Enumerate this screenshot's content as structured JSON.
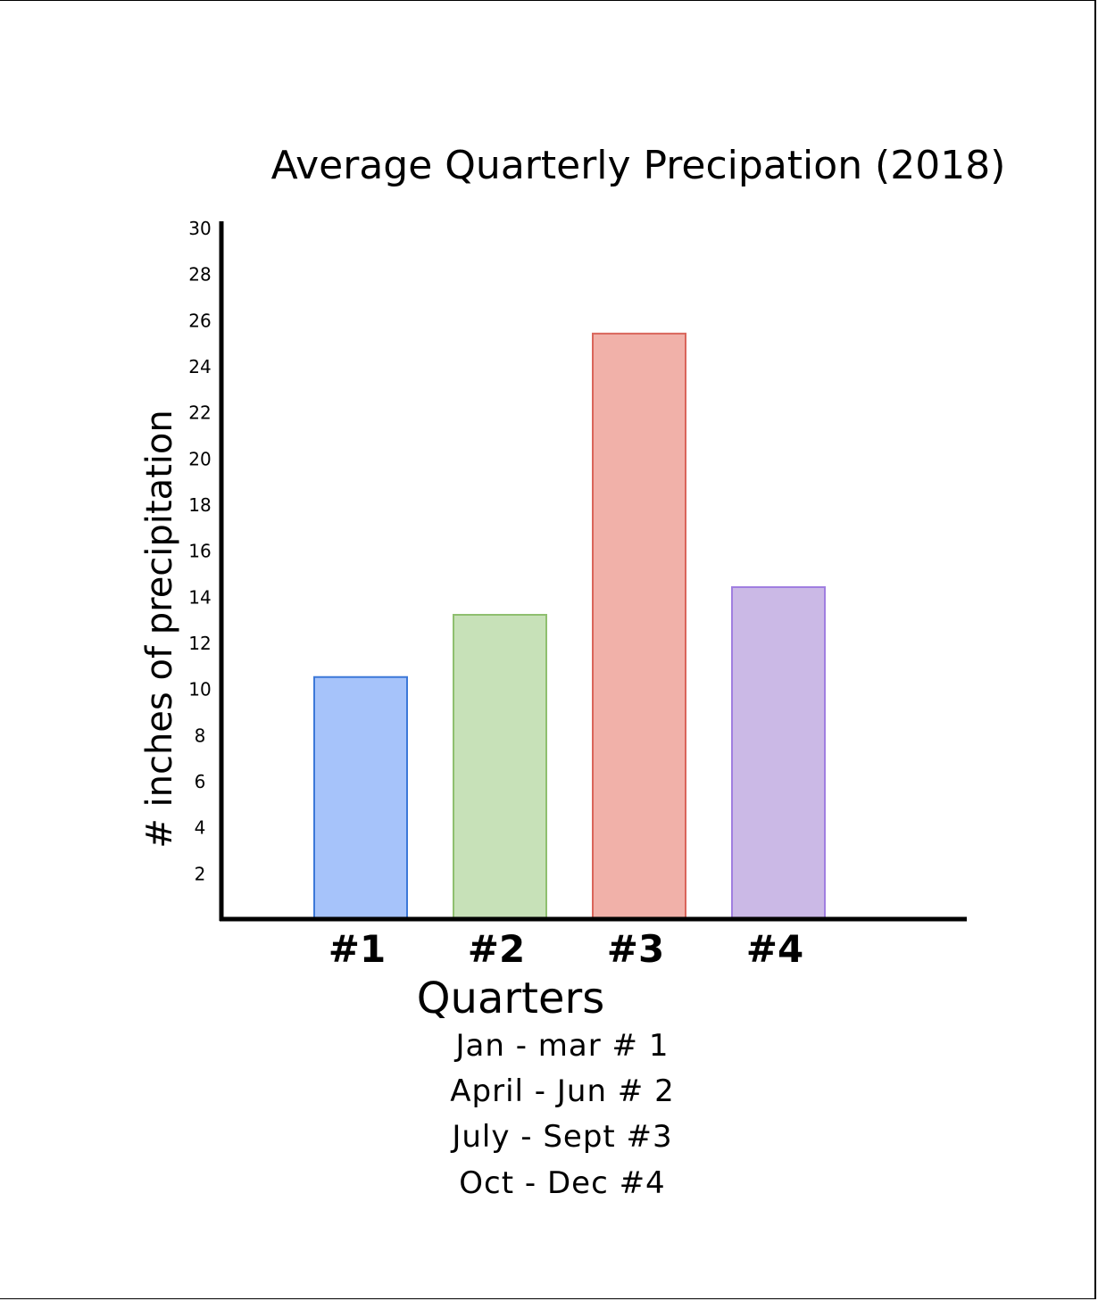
{
  "chart_data": {
    "type": "bar",
    "title": "Average Quarterly Precipation (2018)",
    "xlabel": "Quarters",
    "ylabel": "# inches of precipitation",
    "categories": [
      "#1",
      "#2",
      "#3",
      "#4"
    ],
    "values": [
      10.5,
      13.2,
      25.4,
      14.4
    ],
    "colors": [
      "#a6c3fa",
      "#c7e1b8",
      "#f1b1a9",
      "#cbb9e6"
    ],
    "edge_colors": [
      "#3c78d8",
      "#8fbf6f",
      "#d9655a",
      "#a07ee0"
    ],
    "yticks": [
      2,
      4,
      6,
      8,
      10,
      12,
      14,
      16,
      18,
      20,
      22,
      24,
      26,
      28,
      30
    ],
    "ylim": [
      0,
      30
    ],
    "grid": false,
    "legend": "none"
  },
  "quarter_key": [
    "Jan - mar # 1",
    "April - Jun # 2",
    "July - Sept #3",
    "Oct - Dec #4"
  ]
}
